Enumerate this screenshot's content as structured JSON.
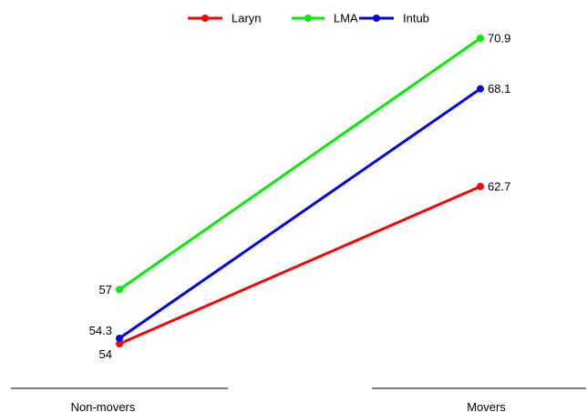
{
  "chart_data": {
    "type": "line",
    "title": "",
    "xlabel": "",
    "ylabel": "",
    "categories": [
      "Non-movers",
      "Movers"
    ],
    "legend": {
      "position": "top-center"
    },
    "grid": false,
    "ylim": [
      50,
      74
    ],
    "series": [
      {
        "name": "Laryn",
        "color": "#ff0000",
        "values": [
          54,
          62.7
        ],
        "labels": [
          "54",
          "62.7"
        ]
      },
      {
        "name": "LMA",
        "color": "#00ee00",
        "values": [
          57,
          70.9
        ],
        "labels": [
          "57",
          "70.9"
        ]
      },
      {
        "name": "Intub",
        "color": "#0000ee",
        "values": [
          54.3,
          68.1
        ],
        "labels": [
          "54.3",
          "68.1"
        ]
      }
    ]
  }
}
